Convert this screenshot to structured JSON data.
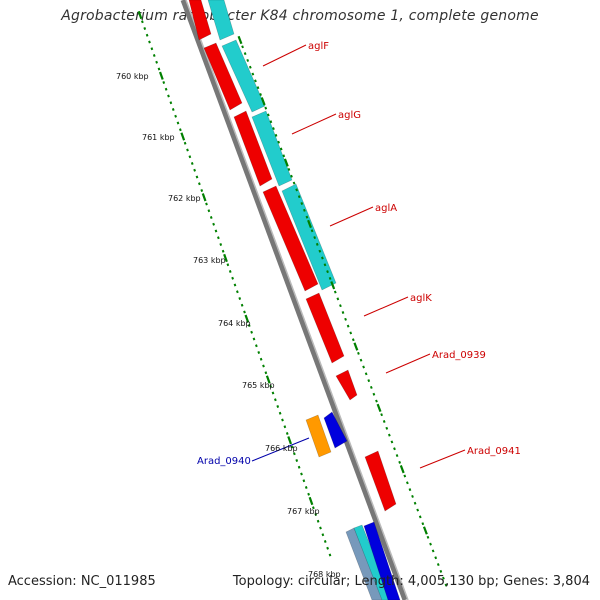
{
  "header": {
    "title": "Agrobacterium radiobacter K84 chromosome 1, complete genome"
  },
  "footer": {
    "accession": "Accession: NC_011985",
    "summary": "Topology: circular; Length: 4,005,130 bp; Genes: 3,804"
  },
  "map": {
    "ruler_color": "#008000",
    "backbone_color": "#808080",
    "ticks": [
      {
        "label": "760 kbp",
        "kbp": 760
      },
      {
        "label": "761 kbp",
        "kbp": 761
      },
      {
        "label": "762 kbp",
        "kbp": 762
      },
      {
        "label": "763 kbp",
        "kbp": 763
      },
      {
        "label": "764 kbp",
        "kbp": 764
      },
      {
        "label": "765 kbp",
        "kbp": 765
      },
      {
        "label": "766 kbp",
        "kbp": 766
      },
      {
        "label": "767 kbp",
        "kbp": 767
      },
      {
        "label": "768 kbp",
        "kbp": 768
      }
    ],
    "genes": [
      {
        "name": "aglF",
        "color": "#cc0000"
      },
      {
        "name": "aglG",
        "color": "#cc0000"
      },
      {
        "name": "aglA",
        "color": "#cc0000"
      },
      {
        "name": "aglK",
        "color": "#cc0000"
      },
      {
        "name": "Arad_0939",
        "color": "#cc0000"
      },
      {
        "name": "Arad_0941",
        "color": "#cc0000"
      },
      {
        "name": "Arad_0940",
        "color": "#0000aa"
      }
    ],
    "colors": {
      "gene_red": "#ee0000",
      "cds_cyan": "#22cccc",
      "gene_blue": "#0000dd",
      "gene_orange": "#ff9900",
      "gene_gray": "#7799bb"
    }
  }
}
